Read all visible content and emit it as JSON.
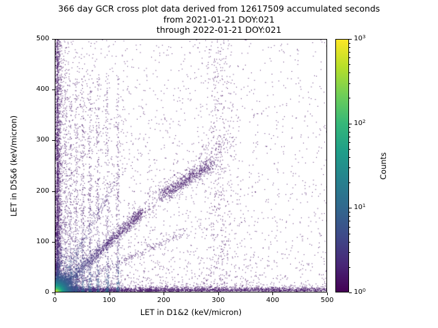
{
  "title": {
    "line1": "366 day GCR cross plot data derived from 12617509 accumulated seconds",
    "line2": "from 2021-01-21 DOY:021",
    "line3": "through 2022-01-21 DOY:021"
  },
  "period": {
    "days": 366,
    "accumulated_seconds": 12617509,
    "start_date": "2021-01-21",
    "start_doy": "021",
    "end_date": "2022-01-21",
    "end_doy": "021"
  },
  "chart_data": {
    "type": "scatter",
    "subtype": "2d-density-crossplot",
    "title": "366 day GCR cross plot data derived from 12617509 accumulated seconds from 2021-01-21 DOY:021 through 2022-01-21 DOY:021",
    "xlabel": "LET in D1&2 (keV/micron)",
    "ylabel": "LET in D5&6 (keV/micron)",
    "xlim": [
      0,
      500
    ],
    "ylim": [
      0,
      500
    ],
    "xticks": [
      0,
      100,
      200,
      300,
      400,
      500
    ],
    "yticks": [
      0,
      100,
      200,
      300,
      400,
      500
    ],
    "grid": false,
    "legend": "none",
    "colorbar": {
      "label": "Counts",
      "scale": "log",
      "min": 1,
      "max": 1000,
      "tick_exponents": [
        0,
        1,
        2,
        3
      ],
      "colormap": "viridis",
      "colormap_hex": [
        "#440154",
        "#482878",
        "#3e4a89",
        "#31688e",
        "#26828e",
        "#1f9e89",
        "#35b779",
        "#6ece58",
        "#b5de2b",
        "#fde725"
      ]
    },
    "seed": 42,
    "features": [
      {
        "kind": "power",
        "n": 4500,
        "xpow": 3.2,
        "ypow": 3.2,
        "t": 0.03
      },
      {
        "kind": "uniform",
        "n": 550,
        "t": 0.03
      },
      {
        "kind": "vband",
        "n": 1800,
        "x0": 2,
        "sigma": 3,
        "ypow": 1.6,
        "t": 0.05,
        "hot": 40
      },
      {
        "kind": "hband",
        "n": 2600,
        "y0": 2,
        "sigma": 4,
        "xpow": 1.4,
        "t": 0.05,
        "hot": 35
      },
      {
        "kind": "striations",
        "xs": [
          10,
          18,
          27,
          38,
          50,
          63,
          78,
          95,
          115
        ],
        "n_each": 240,
        "sigma": 1.8,
        "ymax": 430,
        "ypow": 2.2,
        "t": 0.05
      },
      {
        "kind": "diag",
        "n": 1300,
        "from": [
          0,
          0
        ],
        "to": [
          160,
          160
        ],
        "sigma": 5,
        "t": 0.05,
        "hot": 40
      },
      {
        "kind": "diag",
        "n": 250,
        "from": [
          0,
          0
        ],
        "to": [
          120,
          240
        ],
        "sigma": 4,
        "t": 0.05,
        "hot": 40
      },
      {
        "kind": "diag",
        "n": 250,
        "from": [
          0,
          0
        ],
        "to": [
          240,
          120
        ],
        "sigma": 4,
        "t": 0.05,
        "hot": 40
      },
      {
        "kind": "diag",
        "n": 300,
        "from": [
          150,
          150
        ],
        "to": [
          330,
          310
        ],
        "sigma": 12,
        "t": 0.04
      },
      {
        "kind": "diag",
        "n": 650,
        "from": [
          195,
          190
        ],
        "to": [
          290,
          255
        ],
        "sigma": 6,
        "t": 0.06
      },
      {
        "kind": "column",
        "n": 420,
        "x0": 300,
        "sigma": 14,
        "ymax": 500,
        "t": 0.03
      },
      {
        "kind": "origin",
        "n": 6500,
        "scale": 12,
        "r_hot": 18,
        "t": 0.1
      }
    ]
  }
}
